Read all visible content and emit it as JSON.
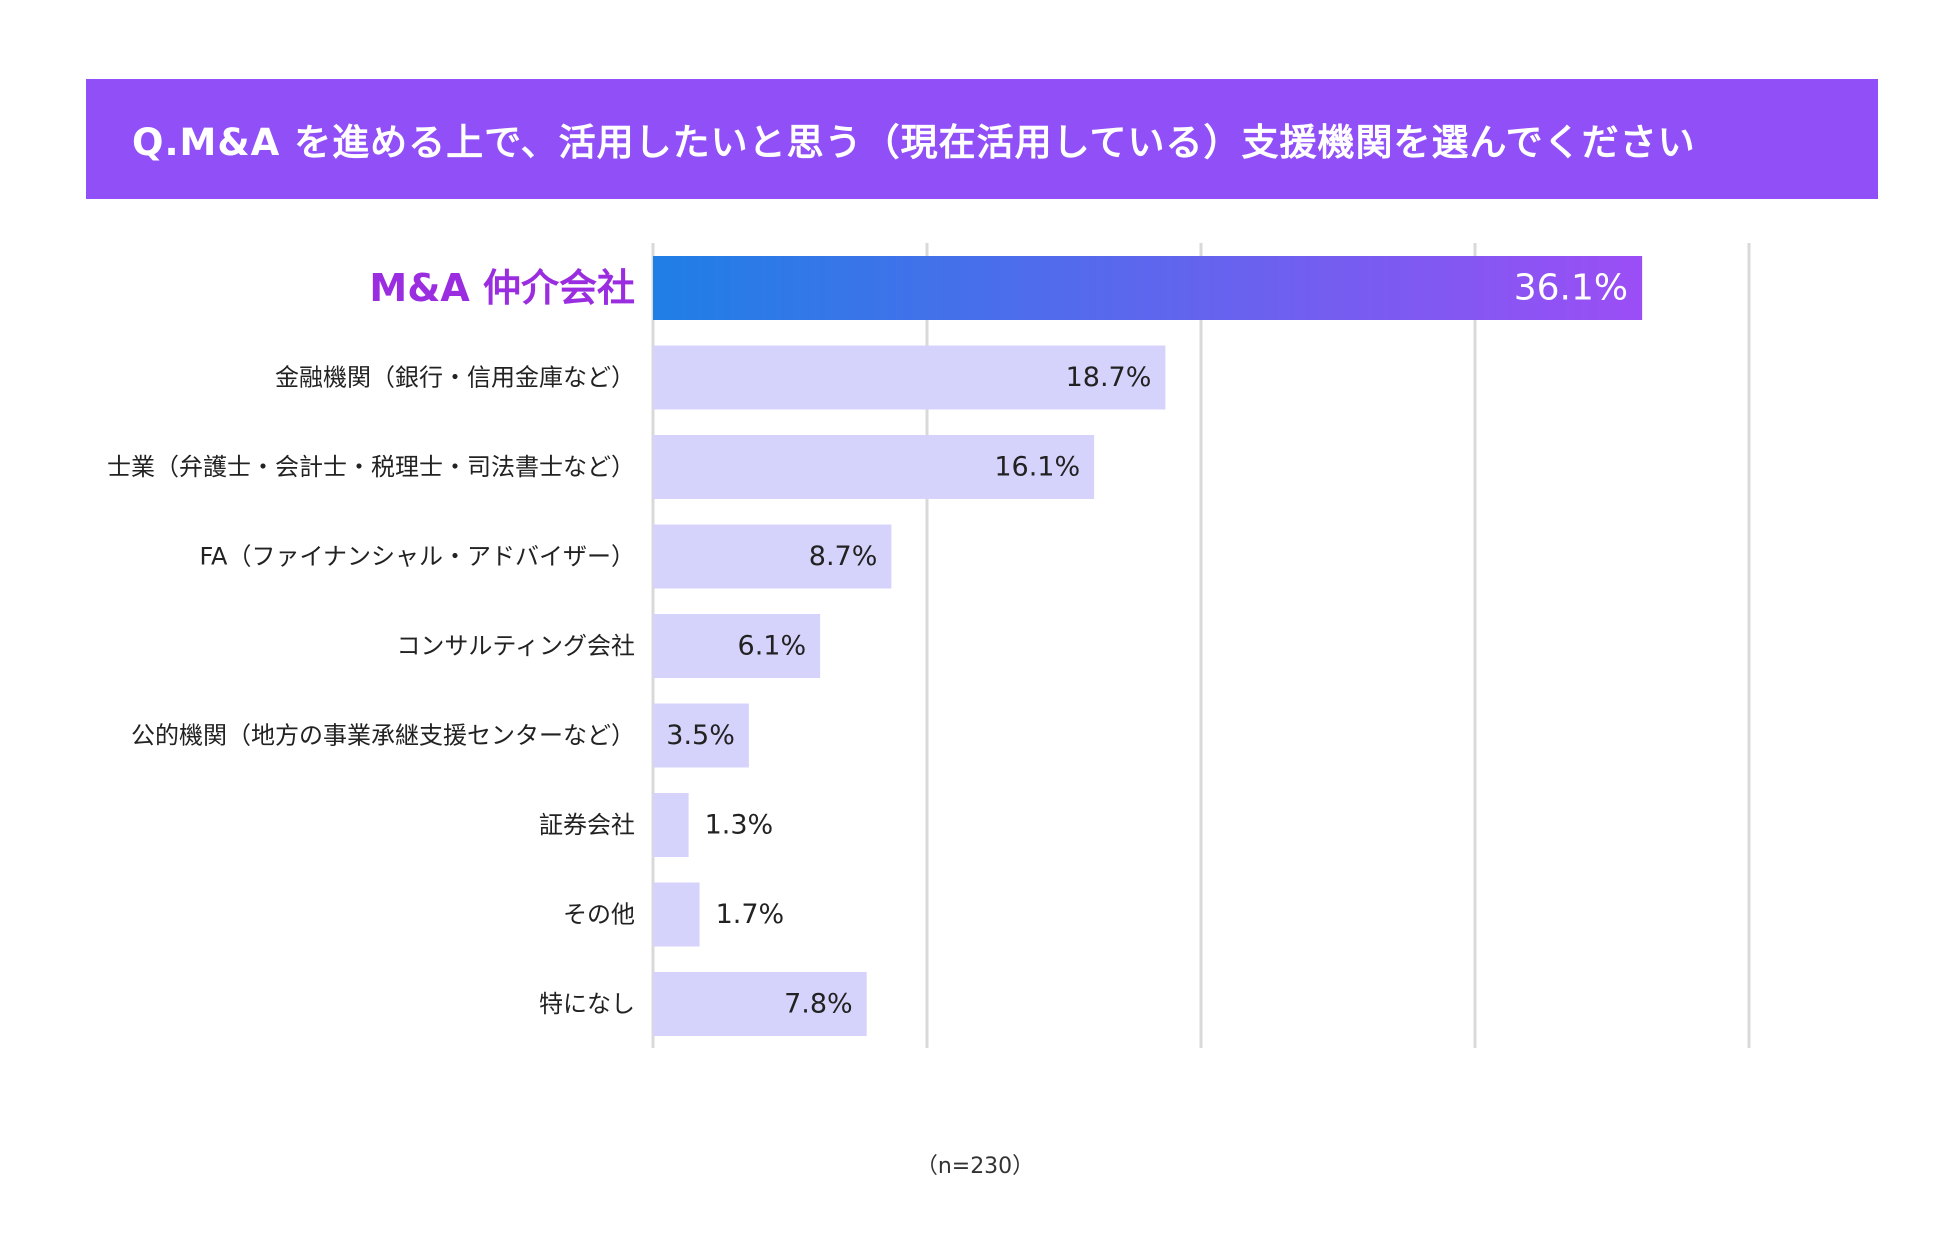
{
  "title": "Q.M&A を進める上で、活用したいと思う（現在活用している）支援機関を選んでください",
  "footnote": "（n=230）",
  "colors": {
    "banner": "#9150f7",
    "highlight_start": "#1f7fe6",
    "highlight_end": "#9b4ef5",
    "highlight_label": "#9a2de0",
    "bar": "#d5d3fb",
    "grid": "#d9d9d9",
    "text": "#222222",
    "value_text_highlight": "#ffffff"
  },
  "chart_data": {
    "type": "bar",
    "orientation": "horizontal",
    "xlim": [
      0,
      40
    ],
    "grid": true,
    "gridlines": [
      0,
      10,
      20,
      30,
      40
    ],
    "value_suffix": "%",
    "categories": [
      "M&A 仲介会社",
      "金融機関（銀行・信用金庫など）",
      "士業（弁護士・会計士・税理士・司法書士など）",
      "FA（ファイナンシャル・アドバイザー）",
      "コンサルティング会社",
      "公的機関（地方の事業承継支援センターなど）",
      "証券会社",
      "その他",
      "特になし"
    ],
    "values": [
      36.1,
      18.7,
      16.1,
      8.7,
      6.1,
      3.5,
      1.3,
      1.7,
      7.8
    ],
    "labels": [
      "36.1%",
      "18.7%",
      "16.1%",
      "8.7%",
      "6.1%",
      "3.5%",
      "1.3%",
      "1.7%",
      "7.8%"
    ],
    "highlight_index": 0
  }
}
